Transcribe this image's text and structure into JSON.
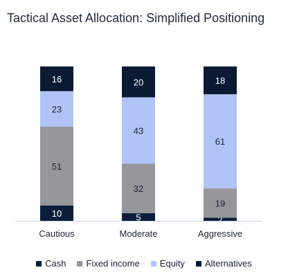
{
  "title": "Tactical Asset Allocation: Simplified Positioning",
  "chart_data": {
    "type": "bar",
    "stacked": true,
    "categories": [
      "Cautious",
      "Moderate",
      "Aggressive"
    ],
    "series": [
      {
        "name": "Cash",
        "color": "#0b1f3a",
        "values": [
          10,
          5,
          2
        ]
      },
      {
        "name": "Fixed income",
        "color": "#96969b",
        "values": [
          51,
          32,
          19
        ]
      },
      {
        "name": "Equity",
        "color": "#b1c4f8",
        "values": [
          23,
          43,
          61
        ]
      },
      {
        "name": "Alternatives",
        "color": "#0b1a33",
        "values": [
          16,
          20,
          18
        ]
      }
    ],
    "ylim": [
      0,
      100
    ],
    "legend": "bottom",
    "grid": false
  }
}
